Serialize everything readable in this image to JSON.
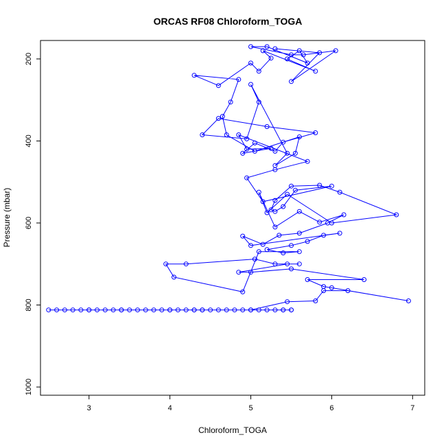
{
  "chart_data": {
    "type": "line",
    "title": "ORCAS RF08 Chloroform_TOGA",
    "xlabel": "Chloroform_TOGA",
    "ylabel": "Pressure (mbar)",
    "xlim": [
      2.4,
      7.15
    ],
    "ylim": [
      1020,
      155
    ],
    "y_reversed": true,
    "x_ticks": [
      3,
      4,
      5,
      6,
      7
    ],
    "y_ticks": [
      200,
      400,
      600,
      800,
      1000
    ],
    "grid": false,
    "color": "#0000ff",
    "marker": "open-circle",
    "series": [
      {
        "x": [
          5.4,
          5.0,
          4.4,
          3.0,
          2.5,
          2.6,
          3.1,
          3.6,
          4.2,
          4.6,
          5.1,
          5.5,
          4.1,
          3.3,
          2.8,
          3.4,
          3.9,
          4.3,
          4.8,
          5.2,
          5.4,
          4.5,
          3.7,
          3.2,
          2.7,
          3.0,
          3.5,
          4.0,
          4.4,
          4.9,
          5.3,
          5.5,
          4.0,
          3.4,
          2.9,
          3.8,
          4.3,
          4.7,
          5.0,
          5.45,
          5.8,
          5.9,
          6.2,
          6.95,
          6.0,
          5.9,
          5.7,
          6.4,
          5.5,
          5.0,
          4.85,
          5.45,
          5.6,
          5.3,
          5.05,
          4.2,
          3.95,
          4.05,
          4.9,
          5.1,
          5.6,
          5.4,
          5.2,
          5.5,
          5.7,
          5.9,
          6.1,
          5.0,
          4.9,
          5.15,
          5.35,
          5.6,
          5.95,
          6.15,
          5.85,
          5.6,
          5.3,
          5.1,
          5.2,
          5.45,
          6.0,
          6.8,
          6.1,
          5.85,
          5.5,
          5.3,
          5.25,
          5.3,
          5.4,
          5.55,
          6.0,
          5.15,
          4.95,
          5.3,
          5.7,
          4.85,
          4.95,
          5.25,
          4.9,
          5.05,
          5.3,
          5.4,
          5.8,
          5.2,
          4.6,
          4.4,
          4.95,
          5.1,
          5.0,
          5.45,
          5.3,
          5.55,
          5.6,
          5.05,
          4.7,
          4.65,
          4.75,
          4.85,
          4.3,
          4.6,
          5.0,
          5.1,
          5.25,
          5.15,
          5.8,
          5.45,
          5.6,
          5.7,
          5.2,
          5.0,
          5.5,
          5.65,
          6.05,
          5.5,
          5.85,
          5.3
        ],
        "y": [
          812,
          812,
          812,
          812,
          812,
          812,
          812,
          812,
          812,
          812,
          812,
          812,
          812,
          812,
          812,
          812,
          812,
          812,
          812,
          812,
          812,
          812,
          812,
          812,
          812,
          812,
          812,
          812,
          812,
          812,
          812,
          812,
          812,
          812,
          812,
          812,
          812,
          812,
          812,
          792,
          790,
          765,
          765,
          790,
          758,
          755,
          738,
          738,
          712,
          720,
          720,
          700,
          700,
          700,
          688,
          700,
          700,
          732,
          768,
          670,
          670,
          673,
          665,
          655,
          645,
          630,
          625,
          655,
          632,
          652,
          630,
          625,
          600,
          580,
          598,
          572,
          610,
          525,
          575,
          530,
          600,
          580,
          525,
          508,
          510,
          545,
          568,
          572,
          560,
          520,
          510,
          548,
          490,
          470,
          450,
          385,
          420,
          418,
          430,
          405,
          425,
          403,
          380,
          365,
          345,
          385,
          395,
          305,
          262,
          430,
          460,
          430,
          390,
          425,
          385,
          340,
          305,
          250,
          240,
          265,
          210,
          230,
          198,
          180,
          230,
          200,
          180,
          210,
          170,
          170,
          190,
          190,
          180,
          255,
          185,
          175
        ]
      }
    ]
  }
}
